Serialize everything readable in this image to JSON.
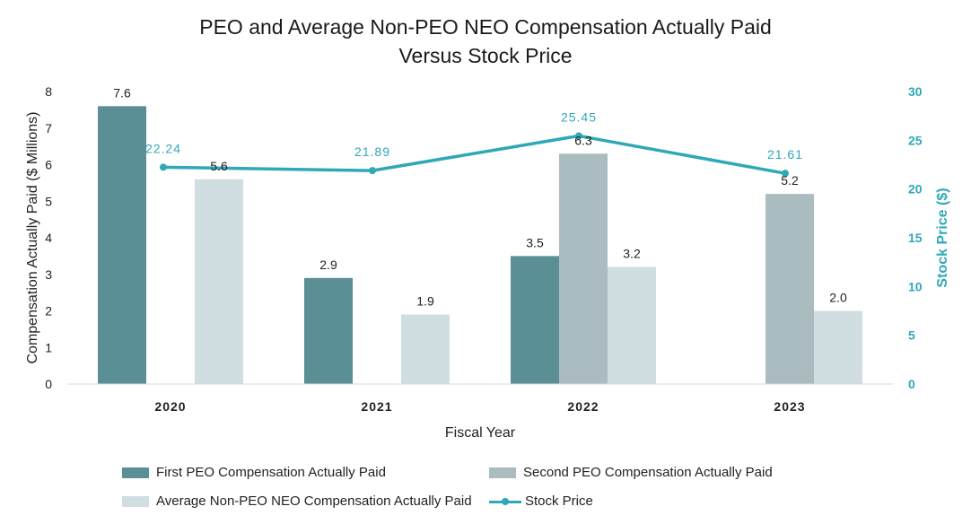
{
  "chart_data": {
    "type": "bar",
    "title": [
      "PEO and Average Non-PEO NEO Compensation Actually Paid",
      "Versus Stock Price"
    ],
    "xlabel": "Fiscal Year",
    "ylabel": "Compensation Actually Paid ($ Millions)",
    "y2label": "Stock Price ($)",
    "ylim": [
      0,
      8
    ],
    "y2lim": [
      0,
      30
    ],
    "yticks": [
      "0",
      "1",
      "2",
      "3",
      "4",
      "5",
      "6",
      "7",
      "8"
    ],
    "y2ticks": [
      "0",
      "5",
      "10",
      "15",
      "20",
      "25",
      "30"
    ],
    "categories": [
      "2020",
      "2021",
      "2022",
      "2023"
    ],
    "series": [
      {
        "name": "First PEO Compensation Actually Paid",
        "type": "bar",
        "color": "#5a8f96",
        "values": [
          7.6,
          2.9,
          3.5,
          null
        ],
        "labels": [
          "7.6",
          "2.9",
          "3.5",
          ""
        ]
      },
      {
        "name": "Second PEO Compensation Actually Paid",
        "type": "bar",
        "color": "#aabcc0",
        "values": [
          null,
          null,
          6.3,
          5.2
        ],
        "labels": [
          "",
          "",
          "6.3",
          "5.2"
        ]
      },
      {
        "name": "Average Non-PEO NEO Compensation Actually Paid",
        "type": "bar",
        "color": "#d0dde1",
        "values": [
          5.6,
          1.9,
          3.2,
          2.0
        ],
        "labels": [
          "5.6",
          "1.9",
          "3.2",
          "2.0"
        ]
      },
      {
        "name": "Stock Price",
        "type": "line",
        "axis": "right",
        "color": "#2fa8b7",
        "values": [
          22.24,
          21.89,
          25.45,
          21.61
        ],
        "labels": [
          "22.24",
          "21.89",
          "25.45",
          "21.61"
        ]
      }
    ],
    "legend_position": "bottom",
    "grid": false
  }
}
